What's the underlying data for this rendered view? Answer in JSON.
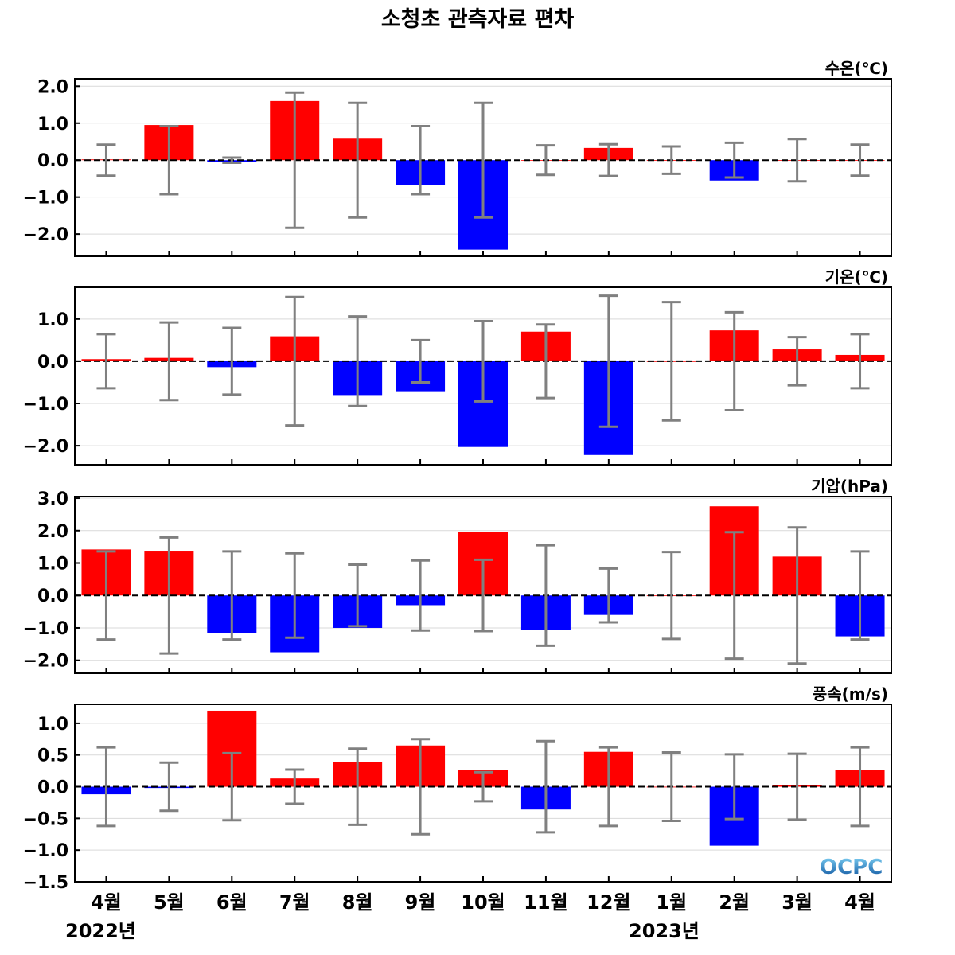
{
  "title": "소청초 관측자료 편차",
  "months": [
    "4월",
    "5월",
    "6월",
    "7월",
    "8월",
    "9월",
    "10월",
    "11월",
    "12월",
    "1월",
    "2월",
    "3월",
    "4월"
  ],
  "years": [
    "2022년",
    "2023년"
  ],
  "colors": {
    "positive": "#ff0000",
    "negative": "#0000ff",
    "error_bar": "#808080"
  },
  "logo": {
    "text": "OCPC"
  },
  "chart_data": [
    {
      "type": "bar",
      "label": "수온(℃)",
      "ylim": [
        -2.6,
        2.2
      ],
      "yticks": [
        -2.0,
        -1.0,
        0.0,
        1.0,
        2.0
      ],
      "tick_labels": [
        "−2.0",
        "−1.0",
        "0.0",
        "1.0",
        "2.0"
      ],
      "values": [
        0.02,
        0.95,
        -0.05,
        1.6,
        0.58,
        -0.67,
        -2.42,
        0.0,
        0.33,
        0.0,
        -0.55,
        0.0,
        0.0
      ],
      "errors": [
        0.42,
        0.92,
        0.07,
        1.83,
        1.55,
        0.92,
        1.55,
        0.4,
        0.43,
        0.37,
        0.47,
        0.57,
        0.42
      ]
    },
    {
      "type": "bar",
      "label": "기온(℃)",
      "ylim": [
        -2.45,
        1.75
      ],
      "yticks": [
        -2.0,
        -1.0,
        0.0,
        1.0
      ],
      "tick_labels": [
        "−2.0",
        "−1.0",
        "0.0",
        "1.0"
      ],
      "values": [
        0.05,
        0.08,
        -0.14,
        0.59,
        -0.8,
        -0.71,
        -2.03,
        0.7,
        -2.22,
        0.0,
        0.73,
        0.28,
        0.15
      ],
      "errors": [
        0.64,
        0.92,
        0.79,
        1.52,
        1.06,
        0.5,
        0.95,
        0.87,
        1.55,
        1.4,
        1.16,
        0.57,
        0.64
      ]
    },
    {
      "type": "bar",
      "label": "기압(hPa)",
      "ylim": [
        -2.4,
        3.05
      ],
      "yticks": [
        -2.0,
        -1.0,
        0.0,
        1.0,
        2.0,
        3.0
      ],
      "tick_labels": [
        "−2.0",
        "−1.0",
        "0.0",
        "1.0",
        "2.0",
        "3.0"
      ],
      "values": [
        1.42,
        1.38,
        -1.15,
        -1.75,
        -1.0,
        -0.3,
        1.95,
        -1.05,
        -0.6,
        0.0,
        2.75,
        1.2,
        -1.26
      ],
      "errors": [
        1.36,
        1.79,
        1.36,
        1.3,
        0.95,
        1.08,
        1.1,
        1.55,
        0.83,
        1.34,
        1.95,
        2.1,
        1.36
      ]
    },
    {
      "type": "bar",
      "label": "풍속(m/s)",
      "ylim": [
        -1.5,
        1.3
      ],
      "yticks": [
        -1.5,
        -1.0,
        -0.5,
        0.0,
        0.5,
        1.0
      ],
      "tick_labels": [
        "−1.5",
        "−1.0",
        "−0.5",
        "0.0",
        "0.5",
        "1.0"
      ],
      "values": [
        -0.12,
        -0.02,
        1.2,
        0.13,
        0.39,
        0.65,
        0.26,
        -0.36,
        0.55,
        0.0,
        -0.93,
        0.03,
        0.26
      ],
      "errors": [
        0.62,
        0.38,
        0.53,
        0.27,
        0.6,
        0.75,
        0.23,
        0.72,
        0.62,
        0.54,
        0.51,
        0.52,
        0.62
      ]
    }
  ]
}
